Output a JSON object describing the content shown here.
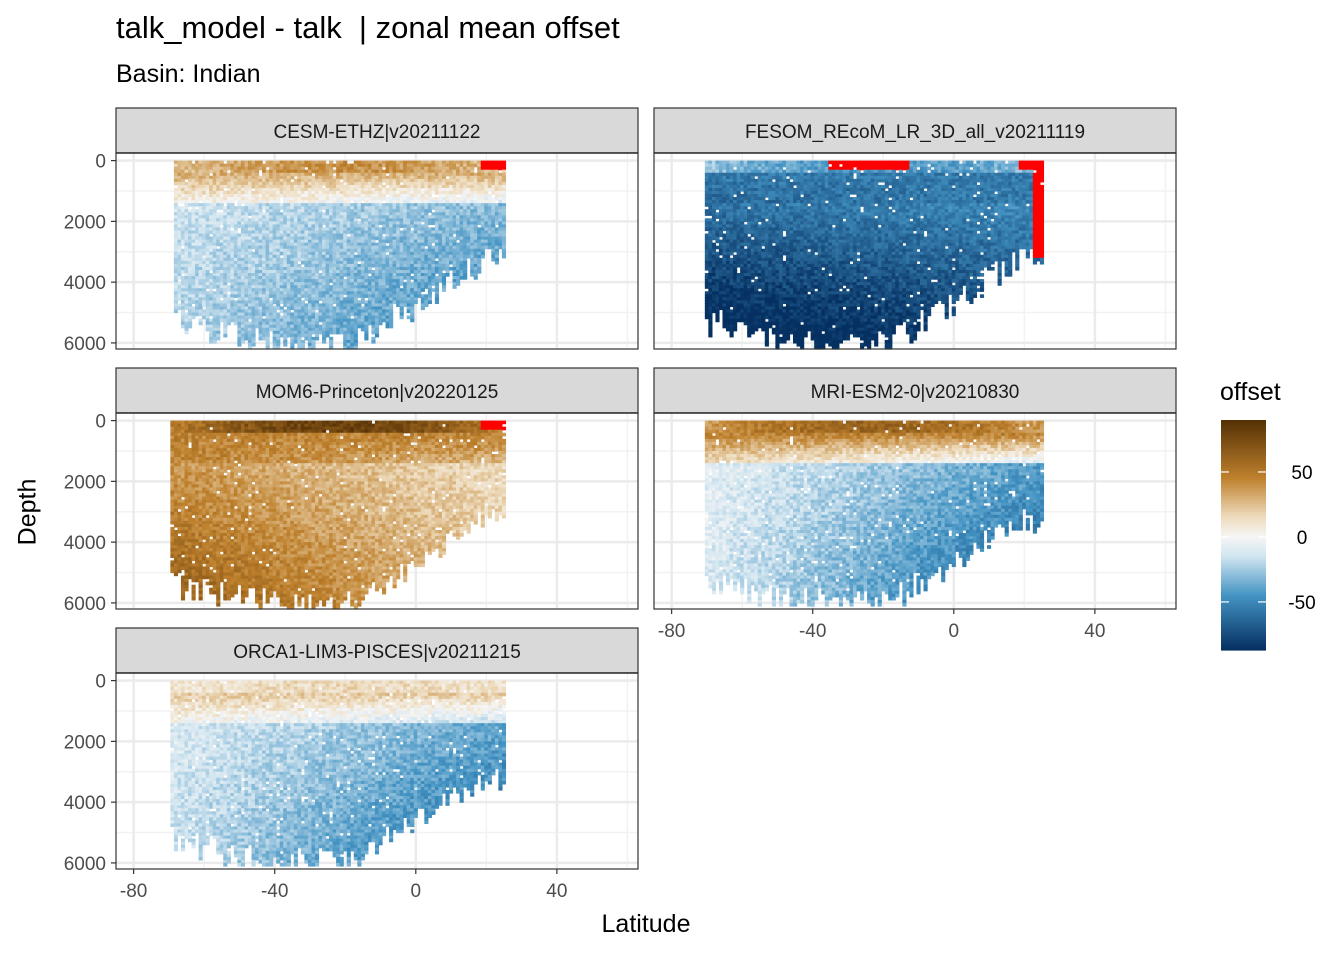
{
  "title": "talk_model - talk  | zonal mean offset",
  "subtitle": "Basin: Indian",
  "chart_data": {
    "type": "heatmap",
    "xlabel": "Latitude",
    "ylabel": "Depth",
    "xlim": [
      -85,
      63
    ],
    "ylim": [
      6200,
      -250
    ],
    "y_reversed": true,
    "x_ticks": [
      -80,
      -40,
      0,
      40
    ],
    "y_ticks": [
      0,
      2000,
      4000,
      6000
    ],
    "grid": true,
    "legend": {
      "title": "offset",
      "position": "right",
      "ticks": [
        50,
        0,
        -50
      ],
      "range": [
        -87,
        90
      ],
      "colors": {
        "high": "#543005",
        "mid_high": "#bf812d",
        "mid": "#f5f5f5",
        "mid_low": "#4393c3",
        "low": "#053061",
        "out_of_range": "#ff0000"
      }
    },
    "panels": [
      {
        "name": "CESM-ETHZ|v20211122",
        "lat_range": [
          -68,
          25
        ],
        "max_depth": 6100,
        "surface_offset": 40,
        "surface_mid_offset": 30,
        "deep_offset_south": -20,
        "deep_offset_north": -45,
        "red_at_surface_north": true
      },
      {
        "name": "FESOM_REcoM_LR_3D_all_v20211119",
        "lat_range": [
          -70,
          25
        ],
        "max_depth": 6100,
        "surface_offset": -45,
        "surface_mid_offset": -55,
        "deep_offset_south": -85,
        "deep_offset_north": -70,
        "red_at_surface_north": true
      },
      {
        "name": "MOM6-Princeton|v20220125",
        "lat_range": [
          -69,
          25
        ],
        "max_depth": 6100,
        "surface_offset": 80,
        "surface_mid_offset": 45,
        "deep_offset_south": 55,
        "deep_offset_north": 20,
        "red_at_surface_north": true
      },
      {
        "name": "MRI-ESM2-0|v20210830",
        "lat_range": [
          -70,
          25
        ],
        "max_depth": 6000,
        "surface_offset": 60,
        "surface_mid_offset": 45,
        "deep_offset_south": -10,
        "deep_offset_north": -60,
        "red_at_surface_north": false
      },
      {
        "name": "ORCA1-LIM3-PISCES|v20211215",
        "lat_range": [
          -69,
          25
        ],
        "max_depth": 6000,
        "surface_offset": 15,
        "surface_mid_offset": 20,
        "deep_offset_south": -15,
        "deep_offset_north": -55,
        "red_at_surface_north": false
      }
    ]
  }
}
